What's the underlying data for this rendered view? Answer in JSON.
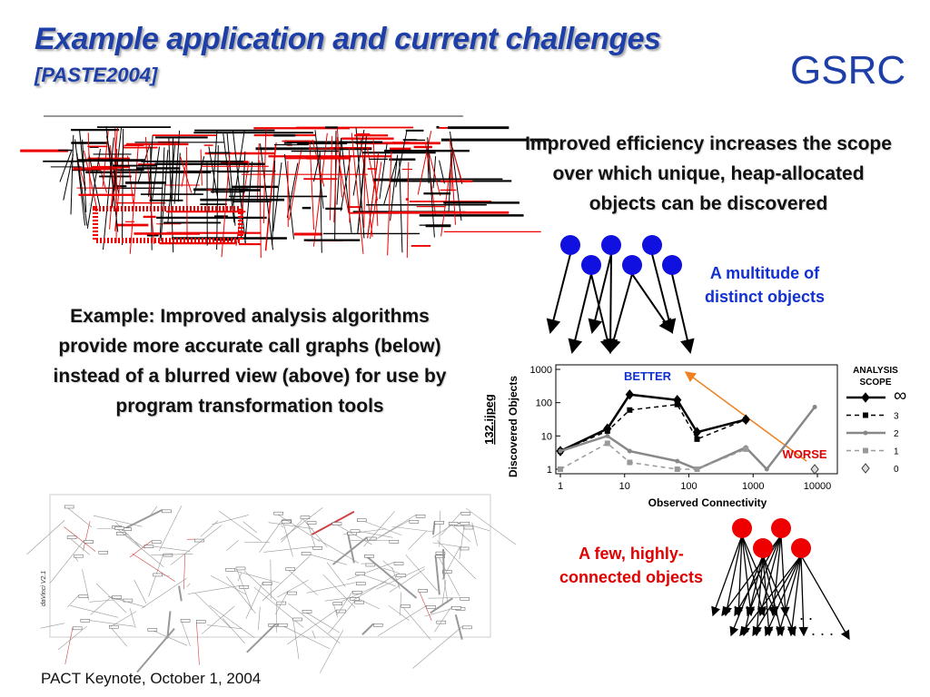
{
  "header": {
    "title": "Example application and current challenges",
    "subtitle": "[PASTE2004]",
    "logo": "GSRC"
  },
  "right_text": "Improved efficiency increases the scope over which unique, heap-allocated objects can be discovered",
  "left_text": "Example: Improved analysis algorithms provide more accurate call graphs (below) instead of a blurred view (above) for use by program transformation tools",
  "blue_label": "A multitude of distinct objects",
  "red_label": "A few, highly-connected objects",
  "graph_label": "daVinci V2.1",
  "footer": "PACT Keynote, October 1, 2004",
  "chart_data": {
    "type": "line",
    "side_label": "132.ijpeg",
    "xlabel": "Observed Connectivity",
    "ylabel": "Discovered Objects",
    "xscale": "log",
    "yscale": "log",
    "xlim": [
      1,
      10000
    ],
    "ylim": [
      1,
      1000
    ],
    "xticks": [
      1,
      10,
      100,
      1000,
      10000
    ],
    "yticks": [
      1,
      10,
      100,
      1000
    ],
    "annotations": [
      "BETTER",
      "WORSE"
    ],
    "legend_title": "ANALYSIS SCOPE",
    "series": [
      {
        "name": "∞",
        "color": "#000000",
        "dash": false,
        "marker": "diamond",
        "x": [
          1,
          5.4,
          12,
          66,
          134,
          770
        ],
        "values": [
          3.5,
          16.5,
          175,
          120,
          13,
          31
        ]
      },
      {
        "name": "3",
        "color": "#000000",
        "dash": true,
        "marker": "square",
        "x": [
          1,
          5.4,
          12,
          66,
          134,
          770
        ],
        "values": [
          3.5,
          14,
          60,
          88,
          8,
          31
        ]
      },
      {
        "name": "2",
        "color": "#888888",
        "dash": false,
        "marker": "circle",
        "x": [
          1,
          5.4,
          12,
          66,
          134,
          770,
          1630,
          9100
        ],
        "values": [
          3.5,
          10,
          3.5,
          1.75,
          1,
          4.5,
          1,
          74
        ]
      },
      {
        "name": "1",
        "color": "#999999",
        "dash": true,
        "marker": "square",
        "x": [
          1,
          5.4,
          12,
          66,
          134,
          770
        ],
        "values": [
          1,
          6,
          1.6,
          1,
          1,
          4
        ]
      },
      {
        "name": "0",
        "color": "#666666",
        "dash": false,
        "marker": "diamond-open",
        "x": [
          9100
        ],
        "values": [
          1
        ]
      }
    ]
  }
}
